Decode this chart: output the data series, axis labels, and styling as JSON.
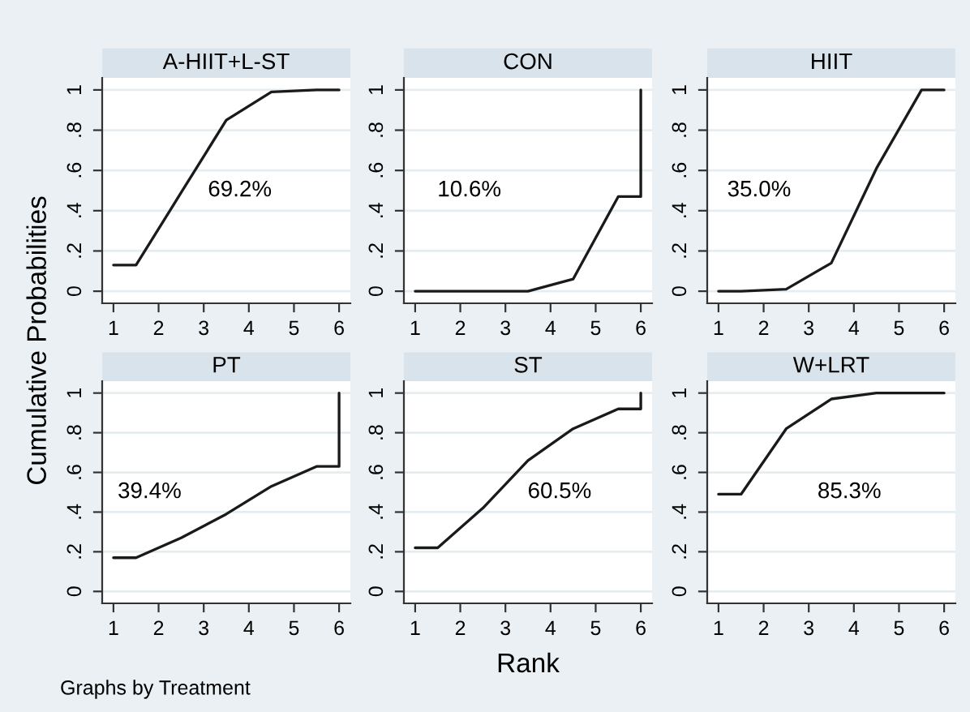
{
  "chart_data": [
    {
      "type": "line",
      "title": "A-HIIT+L-ST",
      "ylabel": "Cumulative Probabilities",
      "annotations": [
        "69.2%"
      ],
      "x": [
        1,
        1.5,
        2.5,
        3.5,
        4.5,
        5.5,
        6
      ],
      "values": [
        0.13,
        0.13,
        0.49,
        0.85,
        0.99,
        1.0,
        1.0
      ],
      "color": "#1a1a1a",
      "xlim": [
        0.75,
        6.25
      ],
      "ylim": [
        -0.06,
        1.06
      ],
      "xticks": [
        1,
        2,
        3,
        4,
        5,
        6
      ],
      "yticks": [
        0,
        {
          "value": 0.2,
          "label": ".2"
        },
        {
          "value": 0.4,
          "label": ".4"
        },
        {
          "value": 0.6,
          "label": ".6"
        },
        {
          "value": 0.8,
          "label": ".8"
        },
        1
      ],
      "grid": "y"
    },
    {
      "type": "line",
      "title": "CON",
      "annotations": [
        "10.6%"
      ],
      "x": [
        1,
        1.5,
        2.5,
        3.5,
        4.5,
        5.5,
        6,
        6
      ],
      "values": [
        0,
        0,
        0,
        0,
        0.06,
        0.47,
        0.47,
        1.0
      ],
      "color": "#1a1a1a",
      "xlim": [
        0.75,
        6.25
      ],
      "ylim": [
        -0.06,
        1.06
      ],
      "xticks": [
        1,
        2,
        3,
        4,
        5,
        6
      ],
      "yticks": [
        0,
        {
          "value": 0.2,
          "label": ".2"
        },
        {
          "value": 0.4,
          "label": ".4"
        },
        {
          "value": 0.6,
          "label": ".6"
        },
        {
          "value": 0.8,
          "label": ".8"
        },
        1
      ],
      "grid": "y"
    },
    {
      "type": "line",
      "title": "HIIT",
      "annotations": [
        "35.0%"
      ],
      "x": [
        1,
        1.5,
        2.5,
        3.5,
        4.5,
        5.5,
        6
      ],
      "values": [
        0,
        0,
        0.01,
        0.14,
        0.61,
        1.0,
        1.0
      ],
      "color": "#1a1a1a",
      "xlim": [
        0.75,
        6.25
      ],
      "ylim": [
        -0.06,
        1.06
      ],
      "xticks": [
        1,
        2,
        3,
        4,
        5,
        6
      ],
      "yticks": [
        0,
        {
          "value": 0.2,
          "label": ".2"
        },
        {
          "value": 0.4,
          "label": ".4"
        },
        {
          "value": 0.6,
          "label": ".6"
        },
        {
          "value": 0.8,
          "label": ".8"
        },
        1
      ],
      "grid": "y"
    },
    {
      "type": "line",
      "title": "PT",
      "annotations": [
        "39.4%",
        "Graphs by Treatment"
      ],
      "x": [
        1,
        1.5,
        2.5,
        3.5,
        4.5,
        5.5,
        6,
        6
      ],
      "values": [
        0.17,
        0.17,
        0.27,
        0.39,
        0.53,
        0.63,
        0.63,
        1.0
      ],
      "color": "#1a1a1a",
      "xlim": [
        0.75,
        6.25
      ],
      "ylim": [
        -0.06,
        1.06
      ],
      "xticks": [
        1,
        2,
        3,
        4,
        5,
        6
      ],
      "yticks": [
        0,
        {
          "value": 0.2,
          "label": ".2"
        },
        {
          "value": 0.4,
          "label": ".4"
        },
        {
          "value": 0.6,
          "label": ".6"
        },
        {
          "value": 0.8,
          "label": ".8"
        },
        1
      ],
      "grid": "y"
    },
    {
      "type": "line",
      "title": "ST",
      "xlabel": "Rank",
      "annotations": [
        "60.5%"
      ],
      "x": [
        1,
        1.5,
        2.5,
        3.5,
        4.5,
        5.5,
        6,
        6
      ],
      "values": [
        0.22,
        0.22,
        0.42,
        0.66,
        0.82,
        0.92,
        0.92,
        1.0
      ],
      "color": "#1a1a1a",
      "xlim": [
        0.75,
        6.25
      ],
      "ylim": [
        -0.06,
        1.06
      ],
      "xticks": [
        1,
        2,
        3,
        4,
        5,
        6
      ],
      "yticks": [
        0,
        {
          "value": 0.2,
          "label": ".2"
        },
        {
          "value": 0.4,
          "label": ".4"
        },
        {
          "value": 0.6,
          "label": ".6"
        },
        {
          "value": 0.8,
          "label": ".8"
        },
        1
      ],
      "grid": "y"
    },
    {
      "type": "line",
      "title": "W+LRT",
      "annotations": [
        "85.3%"
      ],
      "x": [
        1,
        1.5,
        2.5,
        3.5,
        4.5,
        5.5,
        6
      ],
      "values": [
        0.49,
        0.49,
        0.82,
        0.97,
        1.0,
        1.0,
        1.0
      ],
      "color": "#1a1a1a",
      "xlim": [
        0.75,
        6.25
      ],
      "ylim": [
        -0.06,
        1.06
      ],
      "xticks": [
        1,
        2,
        3,
        4,
        5,
        6
      ],
      "yticks": [
        0,
        {
          "value": 0.2,
          "label": ".2"
        },
        {
          "value": 0.4,
          "label": ".4"
        },
        {
          "value": 0.6,
          "label": ".6"
        },
        {
          "value": 0.8,
          "label": ".8"
        },
        1
      ],
      "grid": "y"
    }
  ]
}
